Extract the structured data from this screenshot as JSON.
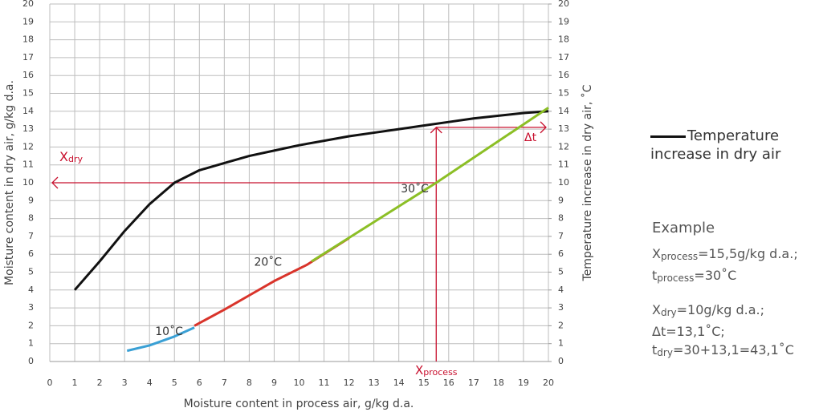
{
  "chart_data": {
    "type": "line",
    "x_label": "Moisture content in process air, g/kg d.a.",
    "y_label": "Moisture content in dry air, g/kg d.a.",
    "y2_label": "Temperature increase in dry air, ˚C",
    "xlim": [
      0,
      20
    ],
    "ylim": [
      0,
      20
    ],
    "y2lim": [
      0,
      20
    ],
    "xticks": [
      0,
      1,
      2,
      3,
      4,
      5,
      6,
      7,
      8,
      9,
      10,
      11,
      12,
      13,
      14,
      15,
      16,
      17,
      18,
      19,
      20
    ],
    "yticks": [
      0,
      1,
      2,
      3,
      4,
      5,
      6,
      7,
      8,
      9,
      10,
      11,
      12,
      13,
      14,
      15,
      16,
      17,
      18,
      19,
      20
    ],
    "y2ticks": [
      0,
      1,
      2,
      3,
      4,
      5,
      6,
      7,
      8,
      9,
      10,
      11,
      12,
      13,
      14,
      15,
      16,
      17,
      18,
      19,
      20
    ],
    "grid": true,
    "series": [
      {
        "name": "Temperature increase in dry air",
        "color": "#111111",
        "axis": "y2",
        "x": [
          1,
          2,
          3,
          4,
          5,
          6,
          7,
          8,
          9,
          10,
          11,
          12,
          13,
          14,
          15,
          16,
          17,
          18,
          19,
          20
        ],
        "values": [
          4,
          5.6,
          7.3,
          8.8,
          10,
          10.7,
          11.1,
          11.5,
          11.8,
          12.1,
          12.35,
          12.6,
          12.8,
          13,
          13.2,
          13.4,
          13.6,
          13.75,
          13.9,
          14
        ]
      },
      {
        "label": "10˚C",
        "color": "#3aa0d5",
        "x": [
          3.1,
          4,
          5,
          5.8
        ],
        "values": [
          0.6,
          0.9,
          1.4,
          1.9
        ]
      },
      {
        "label": "20˚C",
        "color": "#d9342b",
        "x": [
          5.8,
          7,
          8,
          9,
          10.3,
          12
        ],
        "values": [
          2.0,
          2.9,
          3.7,
          4.5,
          5.4,
          6.9
        ]
      },
      {
        "label": "30˚C",
        "color": "#8cbf26",
        "x": [
          10.5,
          15.5,
          20
        ],
        "values": [
          5.6,
          10,
          14.2
        ]
      }
    ],
    "reference_color": "#c8102e",
    "reference_lines": [
      {
        "axis": "x",
        "value": 15.5,
        "label": [
          "X",
          "process"
        ]
      },
      {
        "axis": "y",
        "value": 10,
        "direction": "left",
        "label": [
          "X",
          "dry"
        ]
      },
      {
        "axis": "y",
        "value": 13.1,
        "direction": "right",
        "label": [
          "Δt"
        ]
      }
    ],
    "example": {
      "title": "Example",
      "lines": [
        [
          "X",
          "process",
          "=15,5g/kg d.a.;"
        ],
        [
          "t",
          "process",
          "=30˚C"
        ],
        [
          "X",
          "dry",
          "=10g/kg d.a.;"
        ],
        [
          "Δt=13,1˚C;"
        ],
        [
          "t",
          "dry",
          "=30+13,1=43,1˚C"
        ]
      ]
    }
  }
}
